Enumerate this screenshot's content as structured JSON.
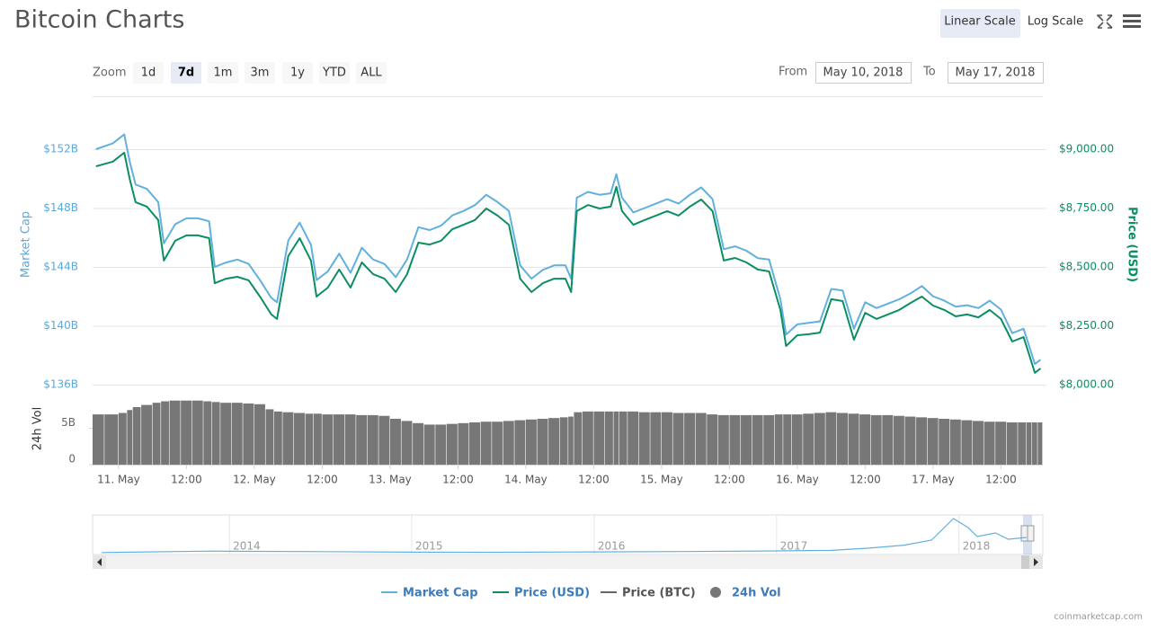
{
  "header": {
    "title": "Bitcoin Charts",
    "scale_buttons": [
      "Linear Scale",
      "Log Scale"
    ]
  },
  "zoom": {
    "label": "Zoom",
    "buttons": [
      "1d",
      "7d",
      "1m",
      "3m",
      "1y",
      "YTD",
      "ALL"
    ],
    "active": "7d"
  },
  "range": {
    "from_label": "From",
    "from": "May 10, 2018",
    "to_label": "To",
    "to": "May 17, 2018"
  },
  "chart_data": {
    "type": "line",
    "y_label": "Market Cap",
    "y2_label": "Price (USD)",
    "y3_label": "24h Vol",
    "x": [
      -4,
      -1,
      1,
      2,
      3,
      5,
      7,
      8,
      10,
      12,
      14,
      16,
      17,
      19,
      21,
      23,
      25,
      27,
      28,
      30,
      32,
      34,
      35,
      37,
      39,
      41,
      43,
      45,
      47,
      49,
      51,
      53,
      55,
      57,
      59,
      61,
      63,
      65,
      67,
      69,
      71,
      73,
      75,
      77,
      79,
      80,
      81,
      83,
      85,
      87,
      88,
      89,
      91,
      93,
      95,
      97,
      99,
      101,
      103,
      105,
      107,
      109,
      111,
      113,
      115,
      117,
      118,
      120,
      122,
      124,
      126,
      128,
      130,
      132,
      134,
      136,
      138,
      140,
      142,
      144,
      146,
      148,
      150,
      152,
      154,
      156,
      158,
      160,
      161,
      162,
      163
    ],
    "xlim": [
      -4.6,
      163.4
    ],
    "xticks": [
      {
        "value": 0,
        "label": "11. May"
      },
      {
        "value": 12,
        "label": "12:00"
      },
      {
        "value": 24,
        "label": "12. May"
      },
      {
        "value": 36,
        "label": "12:00"
      },
      {
        "value": 48,
        "label": "13. May"
      },
      {
        "value": 60,
        "label": "12:00"
      },
      {
        "value": 72,
        "label": "14. May"
      },
      {
        "value": 84,
        "label": "12:00"
      },
      {
        "value": 96,
        "label": "15. May"
      },
      {
        "value": 108,
        "label": "12:00"
      },
      {
        "value": 120,
        "label": "16. May"
      },
      {
        "value": 132,
        "label": "12:00"
      },
      {
        "value": 144,
        "label": "17. May"
      },
      {
        "value": 156,
        "label": "12:00"
      }
    ],
    "ylim": [
      136,
      155.6
    ],
    "yticks": [
      {
        "value": 136,
        "label": "$136B"
      },
      {
        "value": 140,
        "label": "$140B"
      },
      {
        "value": 144,
        "label": "$144B"
      },
      {
        "value": 148,
        "label": "$148B"
      },
      {
        "value": 152,
        "label": "$152B"
      }
    ],
    "y2lim": [
      8000,
      9225
    ],
    "y2ticks": [
      {
        "value": 8000,
        "label": "$8,000.00"
      },
      {
        "value": 8250,
        "label": "$8,250.00"
      },
      {
        "value": 8500,
        "label": "$8,500.00"
      },
      {
        "value": 8750,
        "label": "$8,750.00"
      },
      {
        "value": 9000,
        "label": "$9,000.00"
      }
    ],
    "y3lim": [
      0,
      10
    ],
    "y3ticks": [
      0,
      {
        "value": 5,
        "label": "5B"
      }
    ],
    "grid": true,
    "series": [
      {
        "name": "Market Cap",
        "color": "#62b0dd",
        "values": [
          152.0,
          152.4,
          153.0,
          151.1,
          149.6,
          149.3,
          148.4,
          145.6,
          146.9,
          147.3,
          147.3,
          147.1,
          144.0,
          144.3,
          144.5,
          144.2,
          143.1,
          141.9,
          141.6,
          145.8,
          147.0,
          145.5,
          143.1,
          143.7,
          144.9,
          143.6,
          145.3,
          144.5,
          144.2,
          143.3,
          144.5,
          146.7,
          146.5,
          146.8,
          147.5,
          147.8,
          148.2,
          148.9,
          148.4,
          147.8,
          144.1,
          143.2,
          143.8,
          144.1,
          144.1,
          143.2,
          148.7,
          149.1,
          148.9,
          149.0,
          150.3,
          148.7,
          147.7,
          148.0,
          148.3,
          148.6,
          148.3,
          148.9,
          149.4,
          148.6,
          145.2,
          145.4,
          145.1,
          144.6,
          144.5,
          141.8,
          139.4,
          140.1,
          140.2,
          140.3,
          142.5,
          142.4,
          139.8,
          141.6,
          141.2,
          141.5,
          141.8,
          142.2,
          142.7,
          142.0,
          141.7,
          141.3,
          141.4,
          141.2,
          141.7,
          141.1,
          139.5,
          139.8,
          138.6,
          137.4,
          137.7
        ]
      },
      {
        "name": "Price (USD)",
        "color": "#0b8e62",
        "axis": "y2",
        "values": [
          8927,
          8947,
          8985,
          8870,
          8775,
          8756,
          8699,
          8527,
          8611,
          8634,
          8634,
          8622,
          8431,
          8450,
          8458,
          8443,
          8374,
          8298,
          8279,
          8546,
          8622,
          8527,
          8374,
          8412,
          8489,
          8412,
          8519,
          8469,
          8450,
          8393,
          8469,
          8603,
          8595,
          8611,
          8660,
          8679,
          8699,
          8748,
          8718,
          8679,
          8450,
          8393,
          8431,
          8450,
          8450,
          8393,
          8737,
          8763,
          8748,
          8756,
          8840,
          8737,
          8679,
          8699,
          8718,
          8737,
          8718,
          8756,
          8786,
          8737,
          8527,
          8538,
          8519,
          8489,
          8481,
          8317,
          8164,
          8210,
          8214,
          8221,
          8363,
          8355,
          8191,
          8305,
          8279,
          8298,
          8317,
          8347,
          8374,
          8336,
          8317,
          8290,
          8298,
          8286,
          8317,
          8279,
          8183,
          8202,
          8126,
          8050,
          8069
        ]
      },
      {
        "name": "Price (BTC)",
        "color": "#666666"
      },
      {
        "name": "24h Vol",
        "color": "#777777",
        "type": "bar",
        "axis": "y3",
        "values": [
          6.9,
          6.9,
          7.1,
          7.5,
          7.9,
          8.2,
          8.5,
          8.7,
          8.8,
          8.8,
          8.8,
          8.7,
          8.6,
          8.5,
          8.5,
          8.4,
          8.3,
          7.6,
          7.3,
          7.2,
          7.1,
          7.0,
          7.0,
          6.9,
          6.9,
          6.9,
          6.8,
          6.8,
          6.7,
          6.3,
          6.0,
          5.7,
          5.5,
          5.5,
          5.6,
          5.7,
          5.8,
          5.9,
          5.9,
          6.0,
          6.1,
          6.2,
          6.3,
          6.4,
          6.5,
          6.6,
          7.2,
          7.3,
          7.3,
          7.3,
          7.3,
          7.3,
          7.3,
          7.2,
          7.2,
          7.2,
          7.1,
          7.1,
          7.1,
          6.9,
          6.8,
          6.8,
          6.8,
          6.8,
          6.8,
          6.9,
          6.9,
          6.9,
          7.0,
          7.1,
          7.2,
          7.1,
          7.0,
          6.9,
          6.8,
          6.8,
          6.7,
          6.6,
          6.5,
          6.4,
          6.3,
          6.2,
          6.1,
          6.0,
          5.9,
          5.9,
          5.8,
          5.8,
          5.8,
          5.8,
          5.8
        ]
      }
    ]
  },
  "navigator": {
    "color": "#62b0dd",
    "x": [
      2013.3,
      2013.9,
      2014.0,
      2014.5,
      2015.0,
      2015.5,
      2016.0,
      2016.5,
      2017.0,
      2017.3,
      2017.5,
      2017.7,
      2017.85,
      2017.97,
      2018.05,
      2018.1,
      2018.2,
      2018.27,
      2018.37
    ],
    "values": [
      120,
      900,
      800,
      600,
      300,
      250,
      430,
      650,
      1000,
      1300,
      2500,
      4200,
      7000,
      19000,
      14000,
      9000,
      11000,
      7500,
      8500
    ],
    "xlim": [
      2013.25,
      2018.46
    ],
    "ylim": [
      0,
      20000
    ],
    "xticks": [
      2014,
      2015,
      2016,
      2017,
      2018
    ]
  },
  "credit": "coinmarketcap.com"
}
